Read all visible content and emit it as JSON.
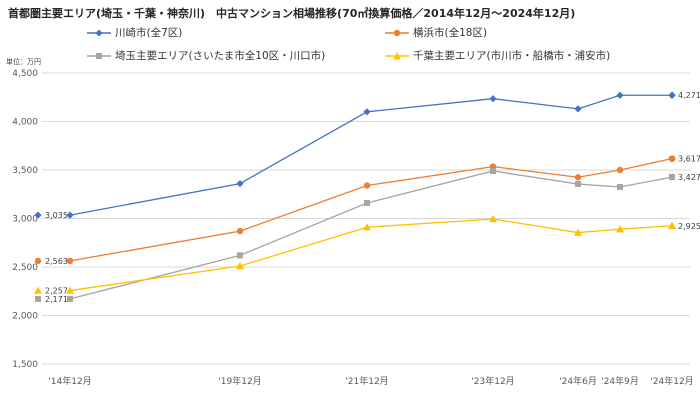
{
  "chart_data": {
    "type": "line",
    "title": "首都圏主要エリア(埼玉・千葉・神奈川)　中古マンション相場推移(70㎡換算価格／2014年12月～2024年12月)",
    "unit_label": "単位：万円",
    "categories": [
      "'14年12月",
      "'19年12月",
      "'21年12月",
      "'23年12月",
      "'24年6月",
      "'24年9月",
      "'24年12月"
    ],
    "ylim": [
      1500,
      4500
    ],
    "yticks": [
      "1,500",
      "2,000",
      "2,500",
      "3,000",
      "3,500",
      "4,000",
      "4,500"
    ],
    "grid": true,
    "legend_position": "top",
    "series": [
      {
        "name": "川崎市(全7区)",
        "color": "#4472C4",
        "marker": "diamond",
        "values": [
          3035,
          3360,
          4100,
          4235,
          4130,
          4271,
          4271
        ],
        "start_label": "3,035",
        "end_label": "4,271"
      },
      {
        "name": "横浜市(全18区)",
        "color": "#ED7D31",
        "marker": "circle",
        "values": [
          2563,
          2870,
          3340,
          3535,
          3425,
          3500,
          3617
        ],
        "start_label": "2,563",
        "end_label": "3,617"
      },
      {
        "name": "埼玉主要エリア(さいたま市全10区・川口市)",
        "color": "#A5A5A5",
        "marker": "square",
        "values": [
          2171,
          2620,
          3160,
          3490,
          3355,
          3325,
          3427
        ],
        "start_label": "2,171",
        "end_label": "3,427"
      },
      {
        "name": "千葉主要エリア(市川市・船橋市・浦安市)",
        "color": "#FFC000",
        "marker": "triangle",
        "values": [
          2257,
          2510,
          2910,
          2995,
          2855,
          2890,
          2925
        ],
        "start_label": "2,257",
        "end_label": "2,925"
      }
    ]
  }
}
